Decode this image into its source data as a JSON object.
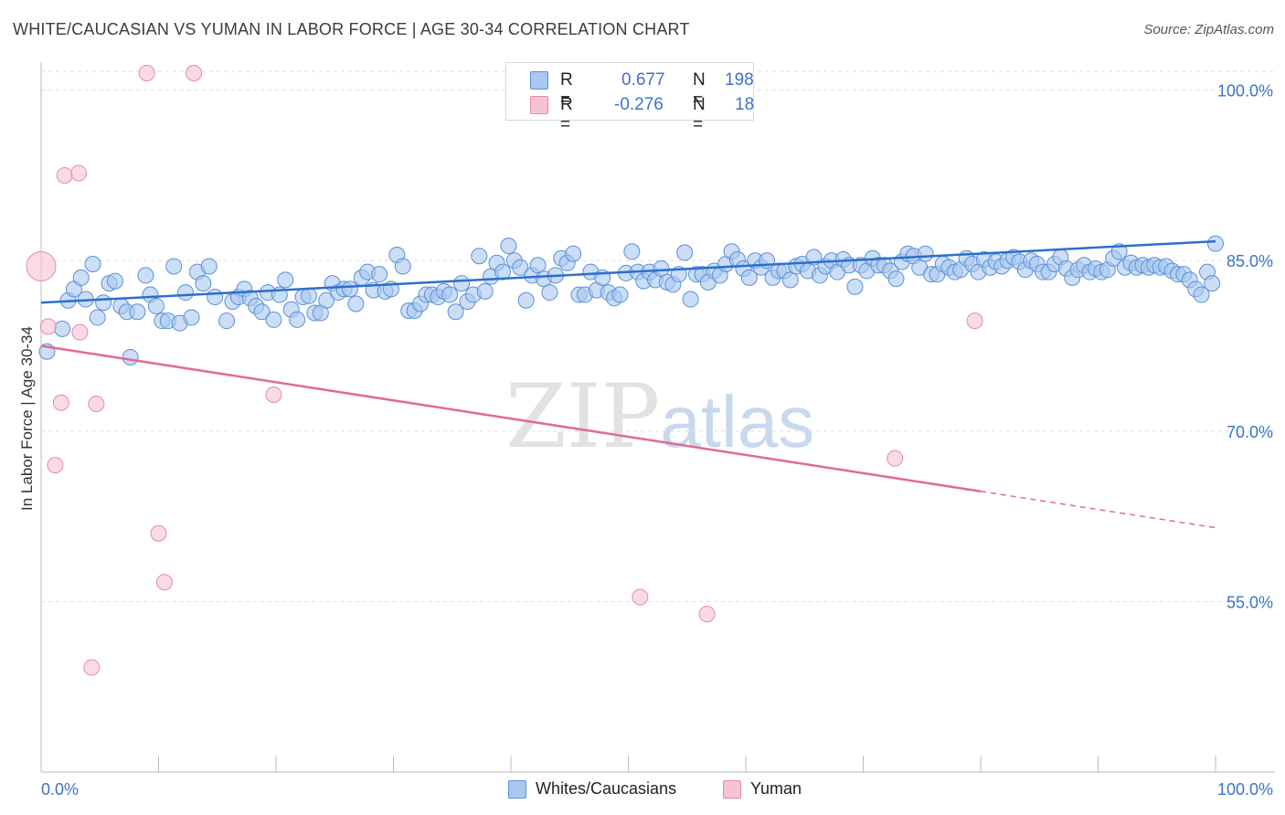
{
  "title": "WHITE/CAUCASIAN VS YUMAN IN LABOR FORCE | AGE 30-34 CORRELATION CHART",
  "source": "Source: ZipAtlas.com",
  "watermark": {
    "zip": "ZIP",
    "atlas": "atlas"
  },
  "legend": {
    "rows": [
      {
        "r_label": "R = ",
        "r_value": "0.677",
        "n_label": "N = ",
        "n_value": "198"
      },
      {
        "r_label": "R = ",
        "r_value": "-0.276",
        "n_label": "N = ",
        "n_value": "18"
      }
    ]
  },
  "colors": {
    "blue_fill": "#a9c8f0",
    "blue_stroke": "#5b8fd6",
    "blue_line": "#2b6fcf",
    "pink_fill": "#f7c3d3",
    "pink_stroke": "#e58aa8",
    "pink_line": "#e06a94",
    "tick_label": "#3b73c9",
    "grid": "#dddddd"
  },
  "chart_data": {
    "type": "scatter",
    "title": "WHITE/CAUCASIAN VS YUMAN IN LABOR FORCE | AGE 30-34 CORRELATION CHART",
    "xlabel": "",
    "ylabel": "In Labor Force | Age 30-34",
    "xlim": [
      0,
      100
    ],
    "ylim": [
      40,
      101.5
    ],
    "x_tick_labels": [
      "0.0%",
      "100.0%"
    ],
    "y_ticks": [
      55,
      70,
      85,
      100
    ],
    "y_tick_labels": [
      "55.0%",
      "70.0%",
      "85.0%",
      "100.0%"
    ],
    "grid": true,
    "legend_position": "top-center",
    "series": [
      {
        "name": "Whites/Caucasians",
        "r": 0.677,
        "n": 198,
        "trend": {
          "x": [
            0,
            100
          ],
          "y": [
            81.3,
            86.7
          ]
        },
        "points": [
          [
            0.5,
            77.0
          ],
          [
            1.8,
            79.0
          ],
          [
            2.3,
            81.5
          ],
          [
            2.8,
            82.5
          ],
          [
            3.4,
            83.5
          ],
          [
            3.8,
            81.6
          ],
          [
            4.4,
            84.7
          ],
          [
            4.8,
            80.0
          ],
          [
            5.3,
            81.3
          ],
          [
            5.8,
            83.0
          ],
          [
            6.3,
            83.2
          ],
          [
            6.8,
            81.0
          ],
          [
            7.3,
            80.5
          ],
          [
            7.6,
            76.5
          ],
          [
            8.2,
            80.5
          ],
          [
            8.9,
            83.7
          ],
          [
            9.3,
            82.0
          ],
          [
            9.8,
            81.0
          ],
          [
            10.3,
            79.7
          ],
          [
            10.8,
            79.7
          ],
          [
            11.3,
            84.5
          ],
          [
            11.8,
            79.5
          ],
          [
            12.3,
            82.2
          ],
          [
            12.8,
            80.0
          ],
          [
            13.3,
            84.0
          ],
          [
            13.8,
            83.0
          ],
          [
            14.3,
            84.5
          ],
          [
            14.8,
            81.8
          ],
          [
            15.8,
            79.7
          ],
          [
            16.3,
            81.4
          ],
          [
            16.8,
            81.8
          ],
          [
            17.3,
            82.5
          ],
          [
            17.8,
            81.7
          ],
          [
            18.3,
            81.0
          ],
          [
            18.8,
            80.5
          ],
          [
            19.3,
            82.2
          ],
          [
            19.8,
            79.8
          ],
          [
            20.3,
            82.0
          ],
          [
            20.8,
            83.3
          ],
          [
            21.3,
            80.7
          ],
          [
            21.8,
            79.8
          ],
          [
            22.3,
            81.8
          ],
          [
            22.8,
            81.9
          ],
          [
            23.3,
            80.4
          ],
          [
            23.8,
            80.4
          ],
          [
            24.3,
            81.5
          ],
          [
            24.8,
            83.0
          ],
          [
            25.3,
            82.2
          ],
          [
            25.8,
            82.5
          ],
          [
            26.3,
            82.5
          ],
          [
            26.8,
            81.2
          ],
          [
            27.3,
            83.5
          ],
          [
            27.8,
            84.0
          ],
          [
            28.3,
            82.4
          ],
          [
            28.8,
            83.8
          ],
          [
            29.3,
            82.3
          ],
          [
            29.8,
            82.5
          ],
          [
            30.3,
            85.5
          ],
          [
            30.8,
            84.5
          ],
          [
            31.3,
            80.6
          ],
          [
            31.8,
            80.6
          ],
          [
            32.3,
            81.2
          ],
          [
            32.8,
            82.0
          ],
          [
            33.3,
            82.0
          ],
          [
            33.8,
            81.8
          ],
          [
            34.3,
            82.3
          ],
          [
            34.8,
            82.0
          ],
          [
            35.3,
            80.5
          ],
          [
            35.8,
            83.0
          ],
          [
            36.3,
            81.4
          ],
          [
            36.8,
            82.0
          ],
          [
            37.3,
            85.4
          ],
          [
            37.8,
            82.3
          ],
          [
            38.3,
            83.6
          ],
          [
            38.8,
            84.8
          ],
          [
            39.3,
            84.0
          ],
          [
            39.8,
            86.3
          ],
          [
            40.3,
            85.0
          ],
          [
            40.8,
            84.4
          ],
          [
            41.3,
            81.5
          ],
          [
            41.8,
            83.7
          ],
          [
            42.3,
            84.6
          ],
          [
            42.8,
            83.4
          ],
          [
            43.3,
            82.2
          ],
          [
            43.8,
            83.7
          ],
          [
            44.3,
            85.2
          ],
          [
            44.8,
            84.8
          ],
          [
            45.3,
            85.6
          ],
          [
            45.8,
            82.0
          ],
          [
            46.3,
            82.0
          ],
          [
            46.8,
            84.0
          ],
          [
            47.3,
            82.4
          ],
          [
            47.8,
            83.5
          ],
          [
            48.3,
            82.2
          ],
          [
            48.8,
            81.7
          ],
          [
            49.3,
            82.0
          ],
          [
            49.8,
            83.9
          ],
          [
            50.3,
            85.8
          ],
          [
            50.8,
            84.0
          ],
          [
            51.3,
            83.2
          ],
          [
            51.8,
            84.0
          ],
          [
            52.3,
            83.3
          ],
          [
            52.8,
            84.3
          ],
          [
            53.3,
            83.1
          ],
          [
            53.8,
            82.9
          ],
          [
            54.3,
            83.8
          ],
          [
            54.8,
            85.7
          ],
          [
            55.3,
            81.6
          ],
          [
            55.8,
            83.8
          ],
          [
            56.3,
            83.8
          ],
          [
            56.8,
            83.1
          ],
          [
            57.3,
            84.1
          ],
          [
            57.8,
            83.7
          ],
          [
            58.3,
            84.7
          ],
          [
            58.8,
            85.8
          ],
          [
            59.3,
            85.1
          ],
          [
            59.8,
            84.3
          ],
          [
            60.3,
            83.5
          ],
          [
            60.8,
            85.0
          ],
          [
            61.3,
            84.4
          ],
          [
            61.8,
            85.0
          ],
          [
            62.3,
            83.5
          ],
          [
            62.8,
            84.1
          ],
          [
            63.3,
            84.1
          ],
          [
            63.8,
            83.3
          ],
          [
            64.3,
            84.5
          ],
          [
            64.8,
            84.7
          ],
          [
            65.3,
            84.1
          ],
          [
            65.8,
            85.3
          ],
          [
            66.3,
            83.7
          ],
          [
            66.8,
            84.5
          ],
          [
            67.3,
            85.0
          ],
          [
            67.8,
            84.0
          ],
          [
            68.3,
            85.1
          ],
          [
            68.8,
            84.6
          ],
          [
            69.3,
            82.7
          ],
          [
            69.8,
            84.6
          ],
          [
            70.3,
            84.1
          ],
          [
            70.8,
            85.2
          ],
          [
            71.3,
            84.6
          ],
          [
            71.8,
            84.6
          ],
          [
            72.3,
            84.1
          ],
          [
            72.8,
            83.4
          ],
          [
            73.3,
            84.9
          ],
          [
            73.8,
            85.6
          ],
          [
            74.3,
            85.4
          ],
          [
            74.8,
            84.4
          ],
          [
            75.3,
            85.6
          ],
          [
            75.8,
            83.8
          ],
          [
            76.3,
            83.8
          ],
          [
            76.8,
            84.7
          ],
          [
            77.3,
            84.4
          ],
          [
            77.8,
            84.0
          ],
          [
            78.3,
            84.2
          ],
          [
            78.8,
            85.2
          ],
          [
            79.3,
            84.7
          ],
          [
            79.8,
            84.0
          ],
          [
            80.3,
            85.1
          ],
          [
            80.8,
            84.4
          ],
          [
            81.3,
            84.9
          ],
          [
            81.8,
            84.5
          ],
          [
            82.3,
            85.0
          ],
          [
            82.8,
            85.3
          ],
          [
            83.3,
            84.9
          ],
          [
            83.8,
            84.2
          ],
          [
            84.3,
            85.0
          ],
          [
            84.8,
            84.7
          ],
          [
            85.3,
            84.0
          ],
          [
            85.8,
            84.0
          ],
          [
            86.3,
            84.7
          ],
          [
            86.8,
            85.3
          ],
          [
            87.3,
            84.3
          ],
          [
            87.8,
            83.5
          ],
          [
            88.3,
            84.2
          ],
          [
            88.8,
            84.6
          ],
          [
            89.3,
            84.0
          ],
          [
            89.8,
            84.3
          ],
          [
            90.3,
            84.0
          ],
          [
            90.8,
            84.2
          ],
          [
            91.3,
            85.2
          ],
          [
            91.8,
            85.8
          ],
          [
            92.3,
            84.4
          ],
          [
            92.8,
            84.8
          ],
          [
            93.3,
            84.4
          ],
          [
            93.8,
            84.6
          ],
          [
            94.3,
            84.4
          ],
          [
            94.8,
            84.6
          ],
          [
            95.3,
            84.4
          ],
          [
            95.8,
            84.5
          ],
          [
            96.3,
            84.1
          ],
          [
            96.8,
            83.8
          ],
          [
            97.3,
            83.8
          ],
          [
            97.8,
            83.3
          ],
          [
            98.3,
            82.5
          ],
          [
            98.8,
            82.0
          ],
          [
            99.3,
            84.0
          ],
          [
            99.7,
            83.0
          ],
          [
            100.0,
            86.5
          ]
        ]
      },
      {
        "name": "Yuman",
        "r": -0.276,
        "n": 18,
        "trend": {
          "x": [
            0,
            80
          ],
          "y": [
            77.5,
            64.7
          ]
        },
        "trend_dashed": {
          "x": [
            80,
            100
          ],
          "y": [
            64.7,
            61.5
          ]
        },
        "points": [
          [
            0.0,
            84.5
          ],
          [
            0.6,
            79.2
          ],
          [
            1.2,
            67.0
          ],
          [
            1.7,
            72.5
          ],
          [
            2.0,
            92.5
          ],
          [
            3.2,
            92.7
          ],
          [
            3.3,
            78.7
          ],
          [
            4.3,
            49.2
          ],
          [
            4.7,
            72.4
          ],
          [
            9.0,
            101.5
          ],
          [
            10.0,
            61.0
          ],
          [
            10.5,
            56.7
          ],
          [
            13.0,
            101.5
          ],
          [
            19.8,
            73.2
          ],
          [
            51.0,
            55.4
          ],
          [
            56.7,
            53.9
          ],
          [
            72.7,
            67.6
          ],
          [
            79.5,
            79.7
          ]
        ]
      }
    ]
  },
  "bottom_legend": [
    {
      "label": "Whites/Caucasians"
    },
    {
      "label": "Yuman"
    }
  ]
}
